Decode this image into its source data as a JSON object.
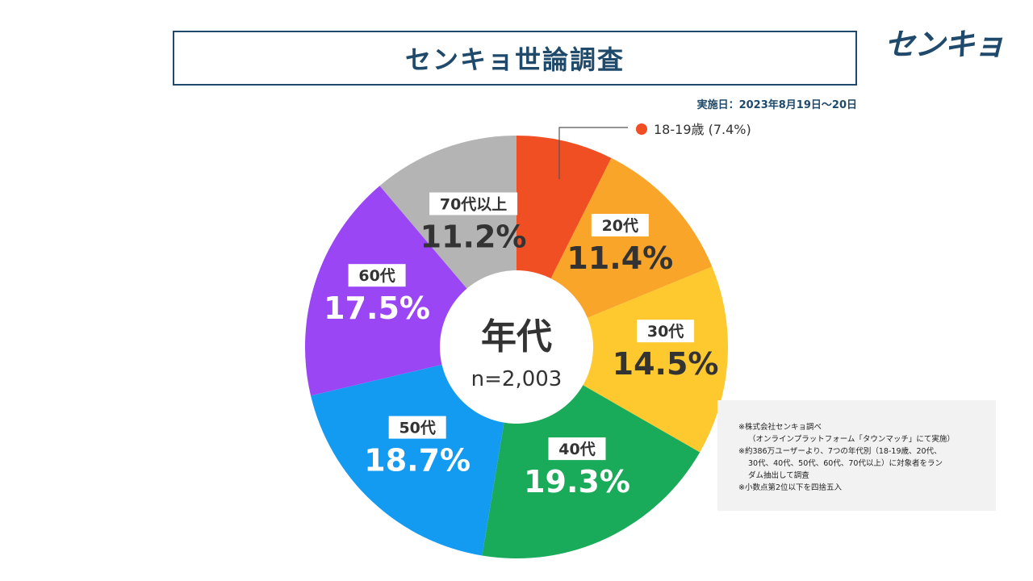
{
  "title": "センキョ世論調査",
  "logo_text": "センキョ",
  "survey_date": "実施日：2023年8月19日～20日",
  "notes": [
    "※株式会社センキョ調べ",
    "（オンラインプラットフォーム「タウンマッチ」にて実施）",
    "※約386万ユーザーより、7つの年代別（18-19歳、20代、",
    "30代、40代、50代、60代、70代以上）に対象者をラン",
    "ダム抽出して調査",
    "※小数点第2位以下を四捨五入"
  ],
  "colors": {
    "brand": "#1f4a6b"
  },
  "chart_data": {
    "type": "pie",
    "center_label": "年代",
    "center_sub": "n=2,003",
    "slices": [
      {
        "label": "18-19歳",
        "value": 7.4,
        "value_text": "7.4%",
        "color": "#f04e23",
        "legend_text": "18-19歳 (7.4%)"
      },
      {
        "label": "20代",
        "value": 11.4,
        "value_text": "11.4%",
        "color": "#f9a52a"
      },
      {
        "label": "30代",
        "value": 14.5,
        "value_text": "14.5%",
        "color": "#fdc92f"
      },
      {
        "label": "40代",
        "value": 19.3,
        "value_text": "19.3%",
        "color": "#1aab5a"
      },
      {
        "label": "50代",
        "value": 18.7,
        "value_text": "18.7%",
        "color": "#139bf1"
      },
      {
        "label": "60代",
        "value": 17.5,
        "value_text": "17.5%",
        "color": "#9a46f5"
      },
      {
        "label": "70代以上",
        "value": 11.2,
        "value_text": "11.2%",
        "color": "#b4b4b4"
      }
    ]
  }
}
